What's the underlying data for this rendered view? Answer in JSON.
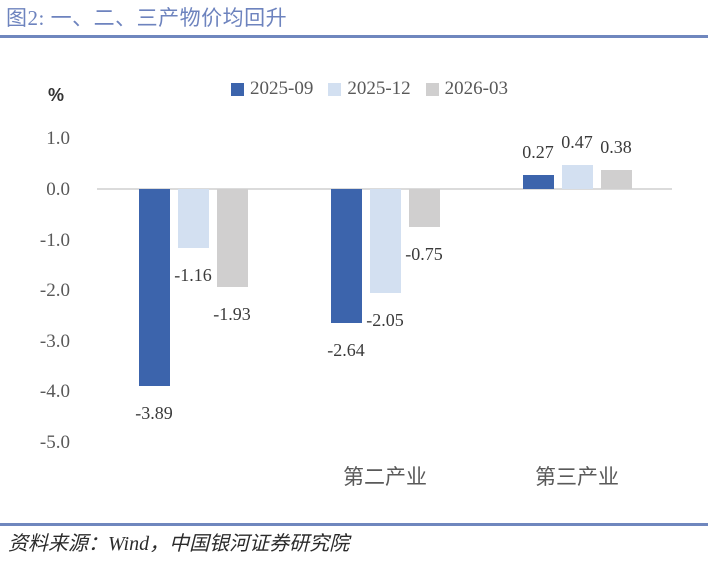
{
  "header": {
    "title": "图2: 一、二、三产物价均回升"
  },
  "footer": {
    "source": "资料来源：Wind，中国银河证券研究院"
  },
  "colors": {
    "title_blue": "#6D83BE",
    "rule_blue": "#6F87BE",
    "axis_gray": "#DBDBDB",
    "text_gray": "#595959",
    "label_dark": "#3B3B3B"
  },
  "chart_data": {
    "type": "bar",
    "title": "图2: 一、二、三产物价均回升",
    "ylabel": "%",
    "xlabel": "",
    "ylim": [
      -5.0,
      1.0
    ],
    "y_ticks": [
      1.0,
      0.0,
      -1.0,
      -2.0,
      -3.0,
      -4.0,
      -5.0
    ],
    "grid": false,
    "legend_position": "top",
    "categories": [
      "",
      "第二产业",
      "第三产业"
    ],
    "series": [
      {
        "name": "2025-09",
        "color": "#3C64AC",
        "values": [
          -3.89,
          -2.64,
          0.27
        ]
      },
      {
        "name": "2025-12",
        "color": "#D3E0F1",
        "values": [
          -1.16,
          -2.05,
          0.47
        ]
      },
      {
        "name": "2026-03",
        "color": "#D0CFCF",
        "values": [
          -1.93,
          -0.75,
          0.38
        ]
      }
    ]
  }
}
